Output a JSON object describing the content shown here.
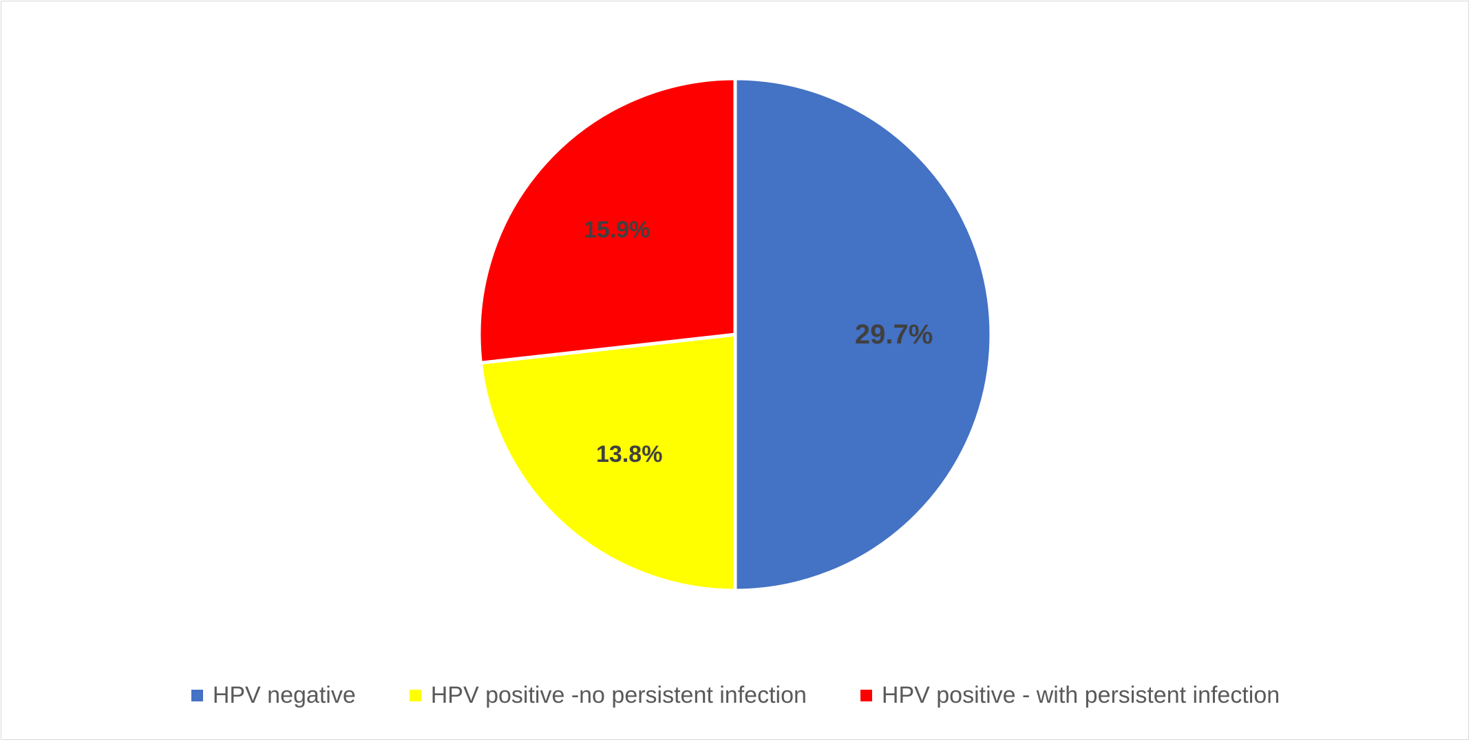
{
  "chart_data": {
    "type": "pie",
    "title": "",
    "categories": [
      "HPV negative",
      "HPV positive -no persistent infection",
      "HPV positive - with persistent infection"
    ],
    "values": [
      29.7,
      13.8,
      15.9
    ],
    "labels": [
      "29.7%",
      "13.8%",
      "15.9%"
    ],
    "colors": [
      "#4472C4",
      "#FFFF00",
      "#FF0000"
    ],
    "start_angle": "12 o'clock",
    "direction": "clockwise",
    "legend_position": "bottom"
  }
}
